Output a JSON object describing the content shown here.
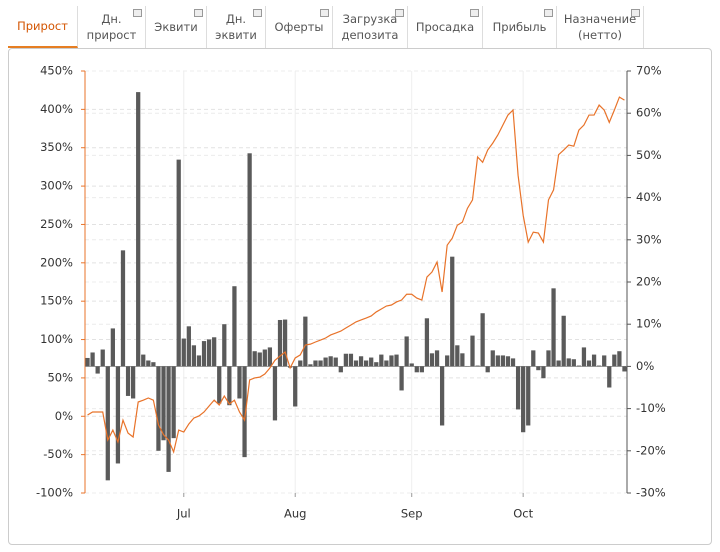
{
  "tabs": [
    {
      "label": "Прирост",
      "active": true
    },
    {
      "label": "Дн.\nприрост"
    },
    {
      "label": "Эквити"
    },
    {
      "label": "Дн.\nэквити"
    },
    {
      "label": "Оферты"
    },
    {
      "label": "Загрузка\nдепозита"
    },
    {
      "label": "Просадка"
    },
    {
      "label": "Прибыль"
    },
    {
      "label": "Назначение\n(нетто)"
    }
  ],
  "chart_data": {
    "type": "bar-line",
    "categories": [
      null,
      null,
      null,
      null,
      null,
      null,
      null,
      null,
      null,
      null,
      null,
      null,
      null,
      null,
      null,
      null,
      null,
      null,
      null,
      "Jul",
      null,
      null,
      null,
      null,
      null,
      null,
      null,
      null,
      null,
      null,
      null,
      null,
      null,
      null,
      null,
      null,
      null,
      null,
      null,
      null,
      null,
      "Aug",
      null,
      null,
      null,
      null,
      null,
      null,
      null,
      null,
      null,
      null,
      null,
      null,
      null,
      null,
      null,
      null,
      null,
      null,
      null,
      null,
      null,
      null,
      "Sep",
      null,
      null,
      null,
      null,
      null,
      null,
      null,
      null,
      null,
      null,
      null,
      null,
      null,
      null,
      null,
      null,
      null,
      null,
      null,
      null,
      null,
      "Oct",
      null,
      null,
      null,
      null,
      null,
      null,
      null,
      null,
      null,
      null,
      null,
      null,
      null,
      null,
      null,
      null,
      null,
      null,
      null,
      null
    ],
    "series": [
      {
        "type": "line",
        "axis": "y",
        "color": "#e8732a",
        "values": [
          1.7,
          5.6,
          5.6,
          5.6,
          -31,
          -18,
          -33.5,
          -5,
          -22,
          -27,
          18.6,
          21,
          23.8,
          21,
          -11,
          -24,
          -31,
          -46.5,
          -18,
          -20.5,
          -10,
          -2.3,
          0.4,
          5.6,
          13.4,
          21,
          14.7,
          26.4,
          16,
          21,
          5.6,
          -5,
          47.3,
          50,
          51,
          55,
          62.9,
          73,
          78.5,
          83.8,
          63,
          76,
          80,
          92.9,
          94,
          96.8,
          99.4,
          102,
          106,
          108.5,
          111,
          115,
          119,
          123,
          125.5,
          128,
          130.7,
          136,
          139.8,
          143.7,
          145,
          149,
          151.5,
          159,
          159,
          154,
          151.5,
          181.5,
          188,
          201,
          162,
          223,
          232,
          249,
          253,
          271,
          282,
          338,
          331,
          347,
          356,
          366.6,
          379.6,
          392.6,
          399,
          314,
          262,
          227,
          240,
          238.8,
          227,
          282,
          295,
          341,
          347,
          353.5,
          352,
          373,
          379.6,
          392.6,
          392.6,
          405.6,
          399,
          383,
          399,
          416,
          412
        ]
      },
      {
        "type": "bar",
        "axis": "y2",
        "color": "#5a5a5a",
        "values": [
          2,
          3.3,
          -1.7,
          4,
          -27,
          9,
          -23,
          27.5,
          -7,
          -7.6,
          65,
          2.8,
          1.4,
          1,
          -20,
          -17.5,
          -25,
          -17,
          49,
          6.6,
          9.5,
          5,
          2.6,
          6,
          6.4,
          6.9,
          -8.8,
          10,
          -9.2,
          19,
          -7.6,
          -21.5,
          50.5,
          3.6,
          3.3,
          4,
          4.5,
          -12.8,
          11,
          11.1,
          -0.3,
          -9.5,
          1.4,
          11.8,
          0.5,
          1.4,
          1.4,
          2.1,
          2.4,
          2.1,
          -1.4,
          3,
          3,
          1.4,
          2.4,
          1.4,
          2.1,
          1,
          2.8,
          1.4,
          2.6,
          2.8,
          -5.7,
          7.1,
          0.7,
          -1.4,
          -1.4,
          11.4,
          3.1,
          3.8,
          -14,
          2.6,
          26,
          5,
          3.1,
          0.1,
          7.3,
          0.2,
          12.6,
          -1.4,
          3.8,
          2.6,
          2.6,
          2.4,
          1.9,
          -10.2,
          -15.6,
          -14,
          3.8,
          -0.9,
          -2.8,
          3.8,
          18.5,
          1.4,
          12,
          1.9,
          1.7,
          0.2,
          4.5,
          1.4,
          2.8,
          0.2,
          2.6,
          -5,
          2.8,
          3.6,
          -1.2
        ]
      }
    ],
    "ylim": [
      -100,
      450
    ],
    "yticks": [
      {
        "value": -100,
        "label": "-100%"
      },
      {
        "value": -50,
        "label": "-50%"
      },
      {
        "value": 0,
        "label": "0%"
      },
      {
        "value": 50,
        "label": "50%"
      },
      {
        "value": 100,
        "label": "100%"
      },
      {
        "value": 150,
        "label": "150%"
      },
      {
        "value": 200,
        "label": "200%"
      },
      {
        "value": 250,
        "label": "250%"
      },
      {
        "value": 300,
        "label": "300%"
      },
      {
        "value": 350,
        "label": "350%"
      },
      {
        "value": 400,
        "label": "400%"
      },
      {
        "value": 450,
        "label": "450%"
      }
    ],
    "y2lim": [
      -30,
      70
    ],
    "y2ticks": [
      {
        "value": -30,
        "label": "-30%"
      },
      {
        "value": -20,
        "label": "-20%"
      },
      {
        "value": -10,
        "label": "-10%"
      },
      {
        "value": 0,
        "label": "0%"
      },
      {
        "value": 10,
        "label": "10%"
      },
      {
        "value": 20,
        "label": "20%"
      },
      {
        "value": 30,
        "label": "30%"
      },
      {
        "value": 40,
        "label": "40%"
      },
      {
        "value": 50,
        "label": "50%"
      },
      {
        "value": 60,
        "label": "60%"
      },
      {
        "value": 70,
        "label": "70%"
      }
    ],
    "grid": true
  }
}
